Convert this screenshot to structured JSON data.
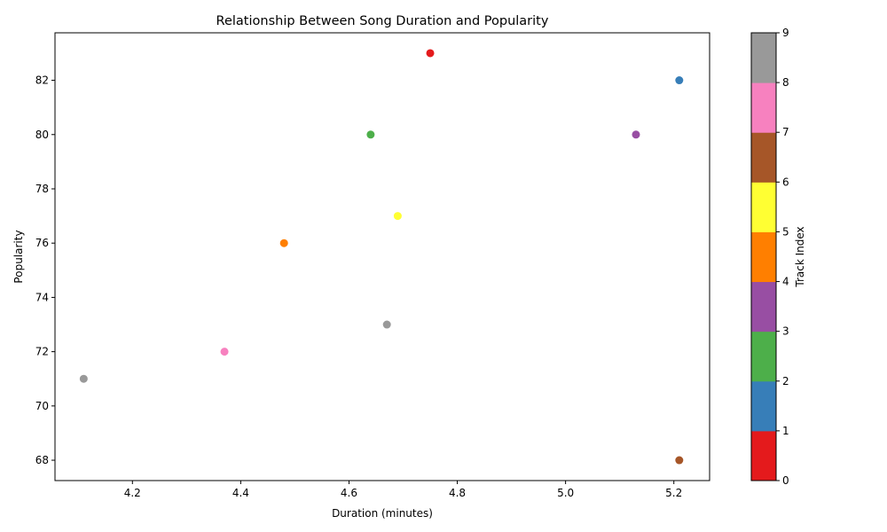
{
  "chart_data": {
    "type": "scatter",
    "title": "Relationship Between Song Duration and Popularity",
    "xlabel": "Duration (minutes)",
    "ylabel": "Popularity",
    "xlim": [
      4.057,
      5.266
    ],
    "ylim": [
      67.25,
      83.75
    ],
    "xticks": [
      4.2,
      4.4,
      4.6,
      4.8,
      5.0,
      5.2
    ],
    "yticks": [
      68,
      70,
      72,
      74,
      76,
      78,
      80,
      82
    ],
    "grid": false,
    "points": [
      {
        "x": 4.75,
        "y": 83,
        "index": 0
      },
      {
        "x": 5.21,
        "y": 82,
        "index": 1
      },
      {
        "x": 4.64,
        "y": 80,
        "index": 2
      },
      {
        "x": 5.13,
        "y": 80,
        "index": 3
      },
      {
        "x": 4.48,
        "y": 76,
        "index": 4
      },
      {
        "x": 4.69,
        "y": 77,
        "index": 5
      },
      {
        "x": 5.21,
        "y": 68,
        "index": 6
      },
      {
        "x": 4.37,
        "y": 72,
        "index": 7
      },
      {
        "x": 4.67,
        "y": 73,
        "index": 8
      },
      {
        "x": 4.11,
        "y": 71,
        "index": 9
      }
    ],
    "colorbar": {
      "label": "Track Index",
      "ticks": [
        0,
        1,
        2,
        3,
        4,
        5,
        6,
        7,
        8,
        9
      ],
      "range": [
        0,
        9
      ],
      "colors": [
        "#e41a1c",
        "#377eb8",
        "#4daf4a",
        "#984ea3",
        "#ff7f00",
        "#ffff33",
        "#a65628",
        "#f781bf",
        "#999999"
      ]
    }
  }
}
